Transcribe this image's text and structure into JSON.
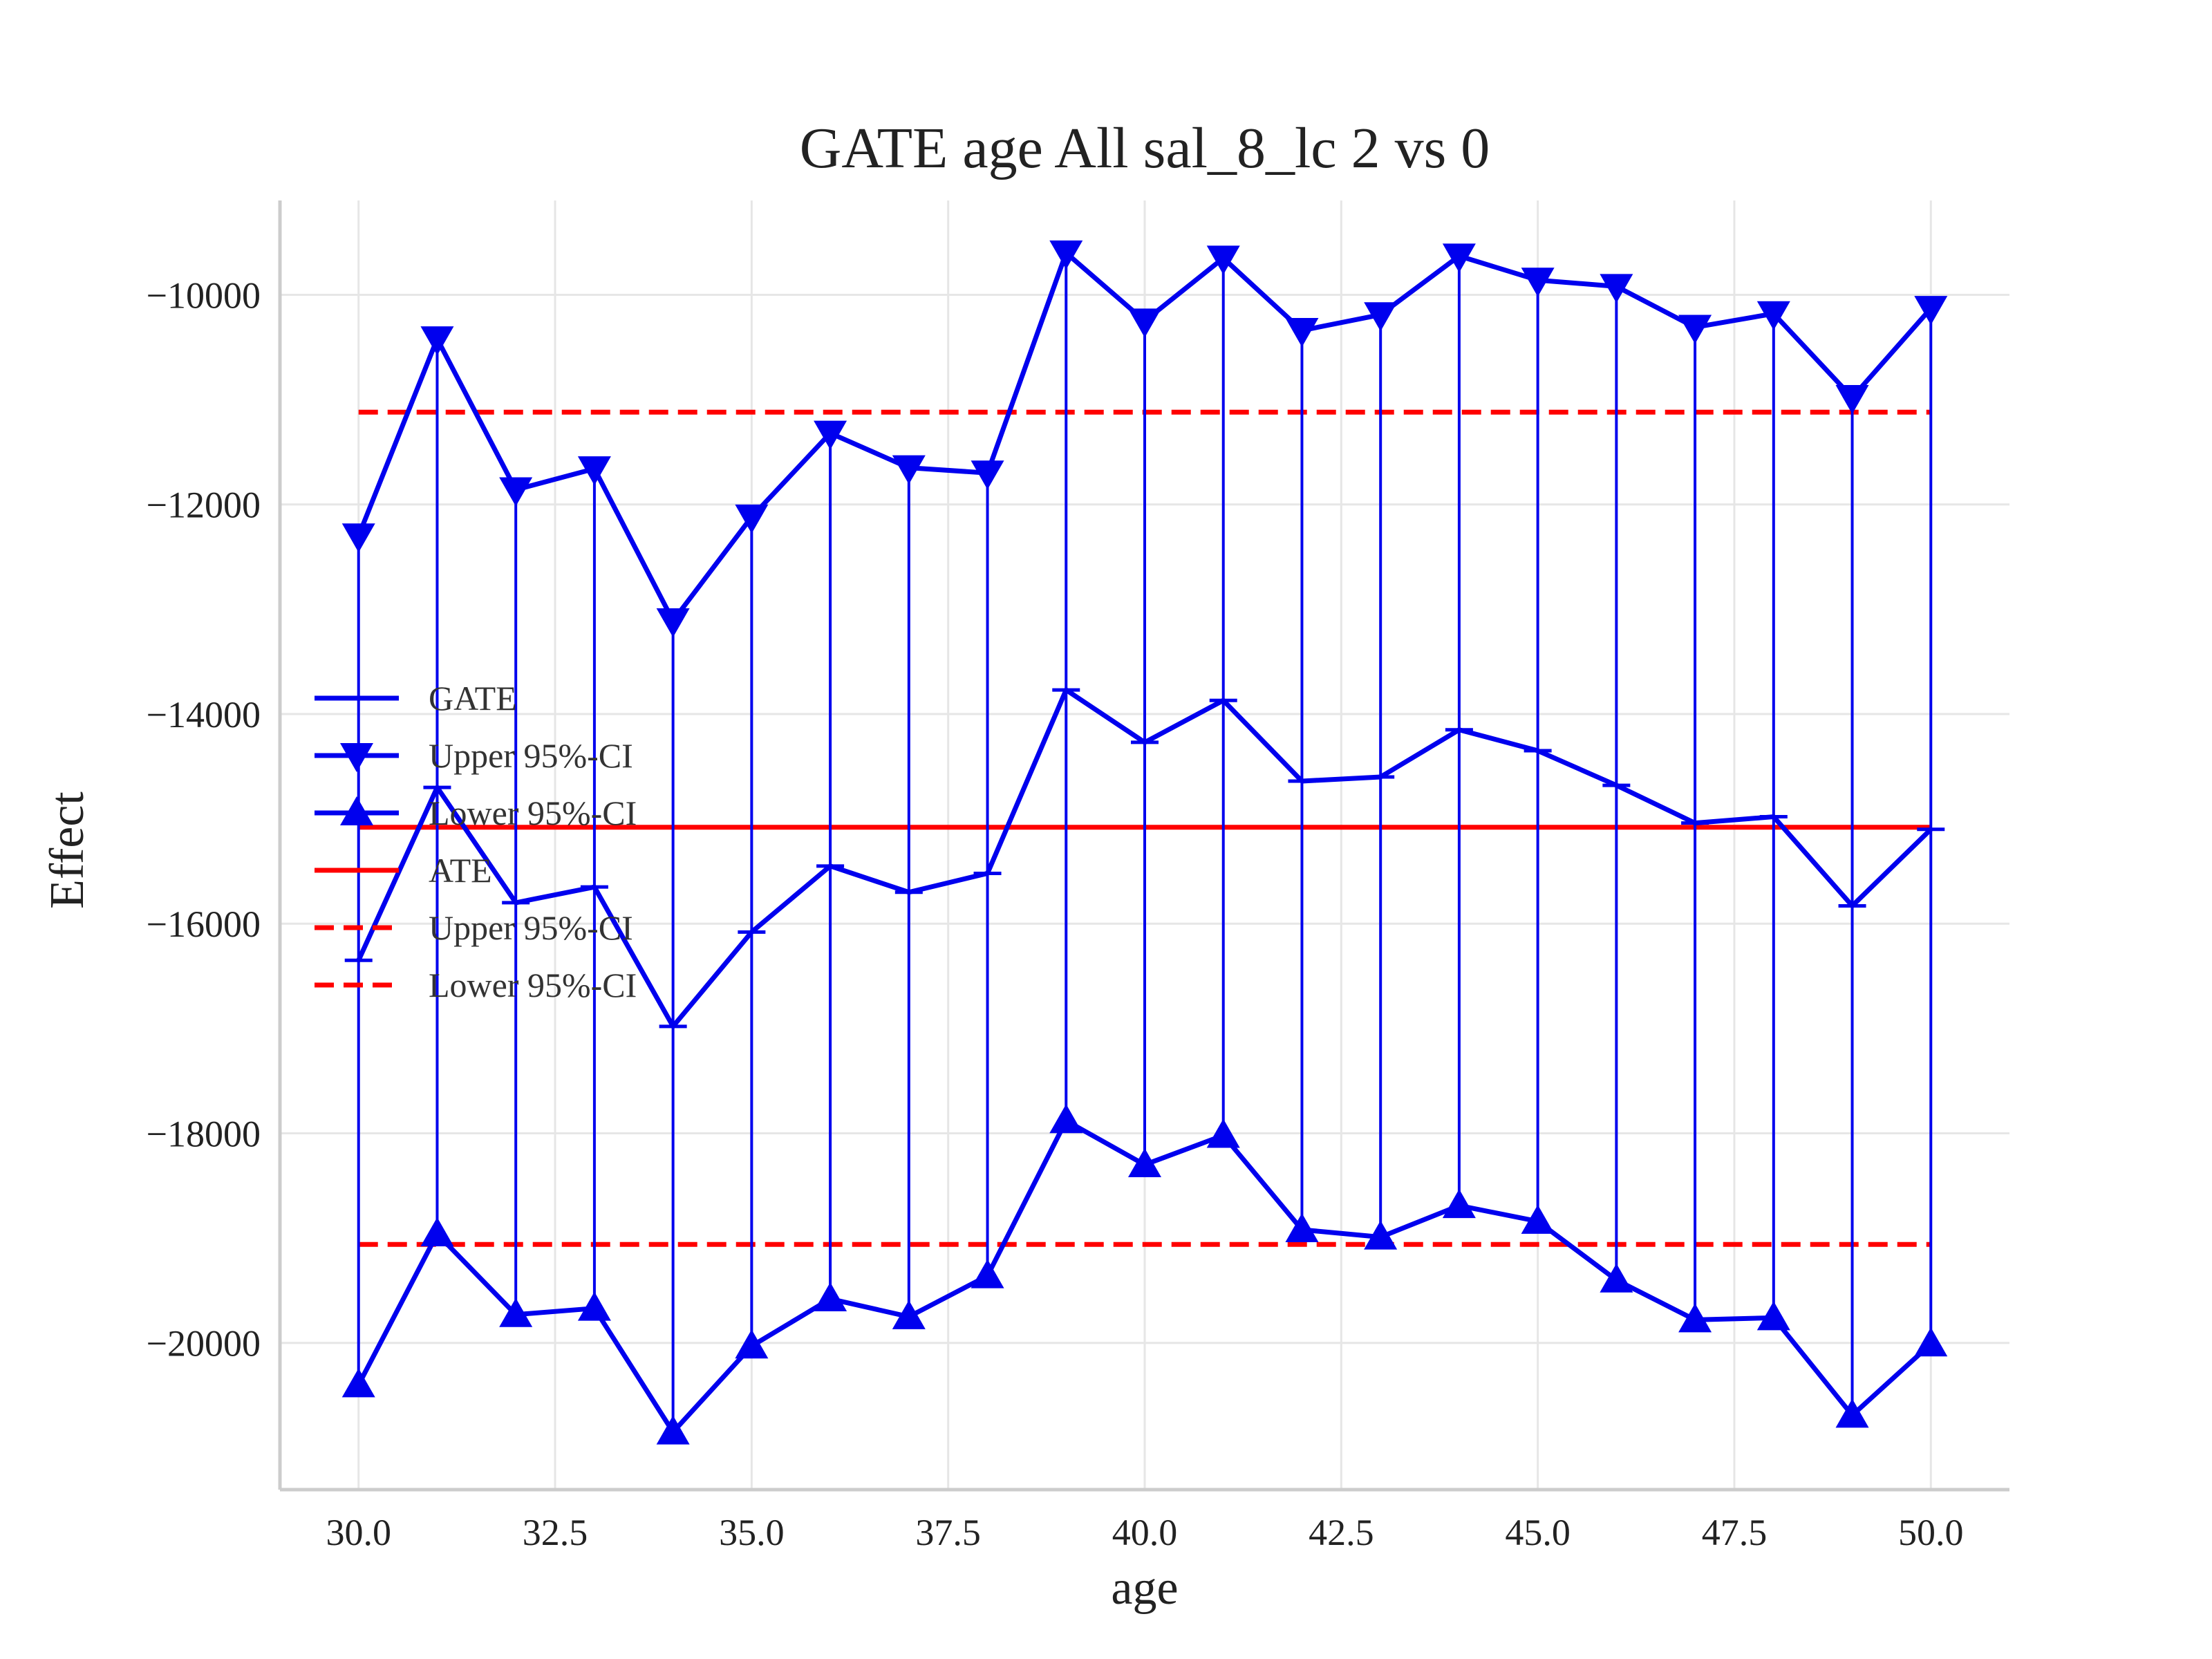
{
  "chart_data": {
    "type": "line",
    "title": "GATE age All sal_8_lc  2 vs 0",
    "xlabel": "age",
    "ylabel": "Effect",
    "xlim": [
      29.0,
      51.0
    ],
    "ylim": [
      -21400,
      -9100
    ],
    "x_ticks": [
      30.0,
      32.5,
      35.0,
      37.5,
      40.0,
      42.5,
      45.0,
      47.5,
      50.0
    ],
    "x_tick_labels": [
      "30.0",
      "32.5",
      "35.0",
      "37.5",
      "40.0",
      "42.5",
      "45.0",
      "47.5",
      "50.0"
    ],
    "y_ticks": [
      -10000,
      -12000,
      -14000,
      -16000,
      -18000,
      -20000
    ],
    "y_tick_labels": [
      "−10000",
      "−12000",
      "−14000",
      "−16000",
      "−18000",
      "−20000"
    ],
    "grid": true,
    "legend_position": "center-left",
    "x": [
      30,
      31,
      32,
      33,
      34,
      35,
      36,
      37,
      38,
      39,
      40,
      41,
      42,
      43,
      44,
      45,
      46,
      47,
      48,
      49,
      50
    ],
    "series": [
      {
        "name": "GATE",
        "color": "#0000ee",
        "marker": "none",
        "values": [
          -16350,
          -14700,
          -15800,
          -15650,
          -16980,
          -16080,
          -15450,
          -15700,
          -15520,
          -13770,
          -14270,
          -13870,
          -14640,
          -14600,
          -14150,
          -14350,
          -14680,
          -15040,
          -14980,
          -15830,
          -15100
        ]
      },
      {
        "name": "Upper 95%-CI",
        "color": "#0000ee",
        "marker": "triangle-down",
        "values": [
          -12300,
          -10420,
          -11860,
          -11660,
          -13110,
          -12120,
          -11320,
          -11650,
          -11700,
          -9600,
          -10250,
          -9650,
          -10340,
          -10190,
          -9630,
          -9860,
          -9920,
          -10310,
          -10180,
          -10980,
          -10130
        ]
      },
      {
        "name": "Lower 95%-CI",
        "color": "#0000ee",
        "marker": "triangle-up",
        "values": [
          -20400,
          -18960,
          -19730,
          -19670,
          -20850,
          -20030,
          -19580,
          -19750,
          -19360,
          -17880,
          -18300,
          -18020,
          -18920,
          -18990,
          -18690,
          -18840,
          -19400,
          -19780,
          -19760,
          -20690,
          -20010
        ]
      },
      {
        "name": "ATE",
        "color": "#ff0000",
        "style": "solid",
        "value": -15080
      },
      {
        "name": "Upper 95%-CI",
        "color": "#ff0000",
        "style": "dashed",
        "value": -11120
      },
      {
        "name": "Lower 95%-CI",
        "color": "#ff0000",
        "style": "dashed",
        "value": -19060
      }
    ]
  }
}
